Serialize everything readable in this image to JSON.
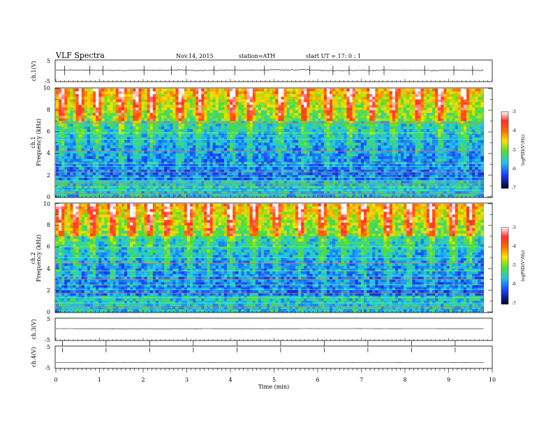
{
  "header": {
    "title": "VLF  Spectra",
    "date": "Nov.14, 2015",
    "station": "station=ATH",
    "start": "start  UT  =    17: 0  : 1"
  },
  "chart_data": [
    {
      "type": "line",
      "name": "ch1-waveform",
      "ylabel": "ch.1(V)",
      "ylim": [
        -5,
        5
      ],
      "yticks": [
        "5",
        "-5"
      ],
      "x_range": [
        0,
        9.8
      ],
      "level": 0.3,
      "noise": 0.35,
      "spike_times": [
        0.2,
        0.78,
        1.08,
        2.02,
        2.65,
        2.98,
        3.62,
        4.1,
        4.78,
        5.82,
        6.35,
        6.72,
        7.18,
        7.52,
        8.45,
        9.12,
        9.55
      ]
    },
    {
      "type": "heatmap",
      "name": "ch1-spectrogram",
      "ylabel": "ch.1\nFrequency  (kHz)",
      "ylim": [
        0,
        10
      ],
      "yticks": [
        "0",
        "2",
        "4",
        "6",
        "8",
        "10"
      ],
      "x_range": [
        0,
        9.8
      ],
      "colorbar": {
        "label": "logPSD(V²/Hz)",
        "range": [
          -7,
          -3
        ],
        "ticks": [
          "-3",
          "-4",
          "-5",
          "-6",
          "-7"
        ]
      },
      "horizontal_lines_khz": [
        0.3,
        0.6,
        0.9,
        1.2,
        1.5,
        1.8,
        2.3,
        2.8,
        3.1,
        4.2,
        5.3,
        5.9,
        6.8
      ],
      "bursts_min": [
        0.15,
        0.55,
        0.95,
        1.5,
        1.85,
        2.2,
        2.85,
        3.3,
        4.05,
        4.45,
        5.15,
        5.7,
        6.25,
        6.75,
        7.25,
        7.75,
        8.3,
        8.8,
        9.35
      ]
    },
    {
      "type": "heatmap",
      "name": "ch2-spectrogram",
      "ylabel": "ch.2\nFrequency  (kHz)",
      "ylim": [
        0,
        10
      ],
      "yticks": [
        "0",
        "2",
        "4",
        "6",
        "8",
        "10"
      ],
      "x_range": [
        0,
        9.8
      ],
      "colorbar": {
        "label": "logPSD(V²/Hz)",
        "range": [
          -7,
          -3
        ],
        "ticks": [
          "-3",
          "-4",
          "-5",
          "-6",
          "-7"
        ]
      },
      "horizontal_lines_khz": [
        0.4,
        0.8,
        1.3,
        1.7,
        2.1,
        2.5,
        3.0,
        3.3,
        3.8,
        4.5,
        5.0,
        6.0
      ],
      "bursts_min": [
        0.1,
        0.45,
        0.85,
        1.3,
        1.75,
        2.15,
        2.55,
        3.05,
        3.5,
        4.0,
        4.55,
        5.05,
        5.6,
        6.1,
        6.6,
        7.05,
        7.6,
        8.1,
        8.6,
        9.1,
        9.5
      ]
    },
    {
      "type": "line",
      "name": "ch3-waveform",
      "ylabel": "ch.3(V)",
      "ylim": [
        -5,
        5
      ],
      "yticks": [
        "5",
        "-5"
      ],
      "x_range": [
        0,
        9.8
      ],
      "level": 0.3,
      "noise": 0.05,
      "spike_times": []
    },
    {
      "type": "line",
      "name": "ch4-waveform",
      "ylabel": "ch.4(V)",
      "ylim": [
        -5,
        5
      ],
      "yticks": [
        "5",
        "-5"
      ],
      "x_range": [
        0,
        9.8
      ],
      "level": -2.5,
      "noise": 0.03,
      "spike_times": []
    }
  ],
  "xaxis": {
    "label": "Time  (min)",
    "range": [
      0,
      10
    ],
    "ticks": [
      "0",
      "1",
      "2",
      "3",
      "4",
      "5",
      "6",
      "7",
      "8",
      "9",
      "10"
    ]
  }
}
